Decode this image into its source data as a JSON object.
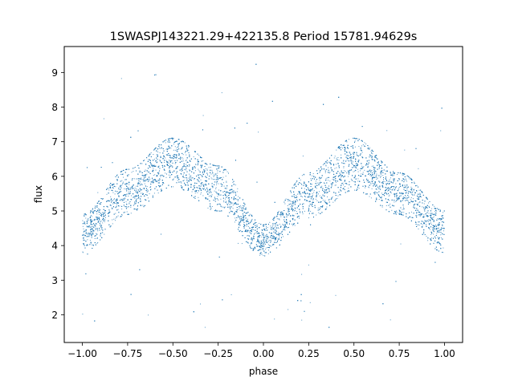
{
  "chart_data": {
    "type": "scatter",
    "title": "1SWASPJ143221.29+422135.8 Period 15781.94629s",
    "xlabel": "phase",
    "ylabel": "flux",
    "xlim": [
      -1.1,
      1.1
    ],
    "ylim": [
      1.2,
      9.75
    ],
    "xticks": [
      "−1.00",
      "−0.75",
      "−0.50",
      "−0.25",
      "0.00",
      "0.25",
      "0.50",
      "0.75",
      "1.00"
    ],
    "xtick_values": [
      -1.0,
      -0.75,
      -0.5,
      -0.25,
      0.0,
      0.25,
      0.5,
      0.75,
      1.0
    ],
    "yticks": [
      "2",
      "3",
      "4",
      "5",
      "6",
      "7",
      "8",
      "9"
    ],
    "ytick_values": [
      2,
      3,
      4,
      5,
      6,
      7,
      8,
      9
    ],
    "grid": false,
    "legend": "none",
    "series": [
      {
        "marker_color": "#1f77b4",
        "profile": {
          "phase": [
            -1.0,
            -0.75,
            -0.5,
            -0.25,
            0.0,
            0.25,
            0.5,
            0.75,
            1.0
          ],
          "flux": [
            4.2,
            5.3,
            6.3,
            5.5,
            4.0,
            5.2,
            6.3,
            5.4,
            4.2
          ],
          "upper_envelope": [
            4.9,
            6.2,
            7.1,
            6.3,
            4.6,
            6.1,
            7.1,
            6.1,
            5.0
          ],
          "lower_envelope": [
            3.8,
            4.9,
            5.7,
            5.0,
            3.7,
            4.8,
            5.6,
            4.9,
            3.8
          ]
        },
        "outlier_range": [
          1.5,
          9.45
        ]
      }
    ]
  }
}
